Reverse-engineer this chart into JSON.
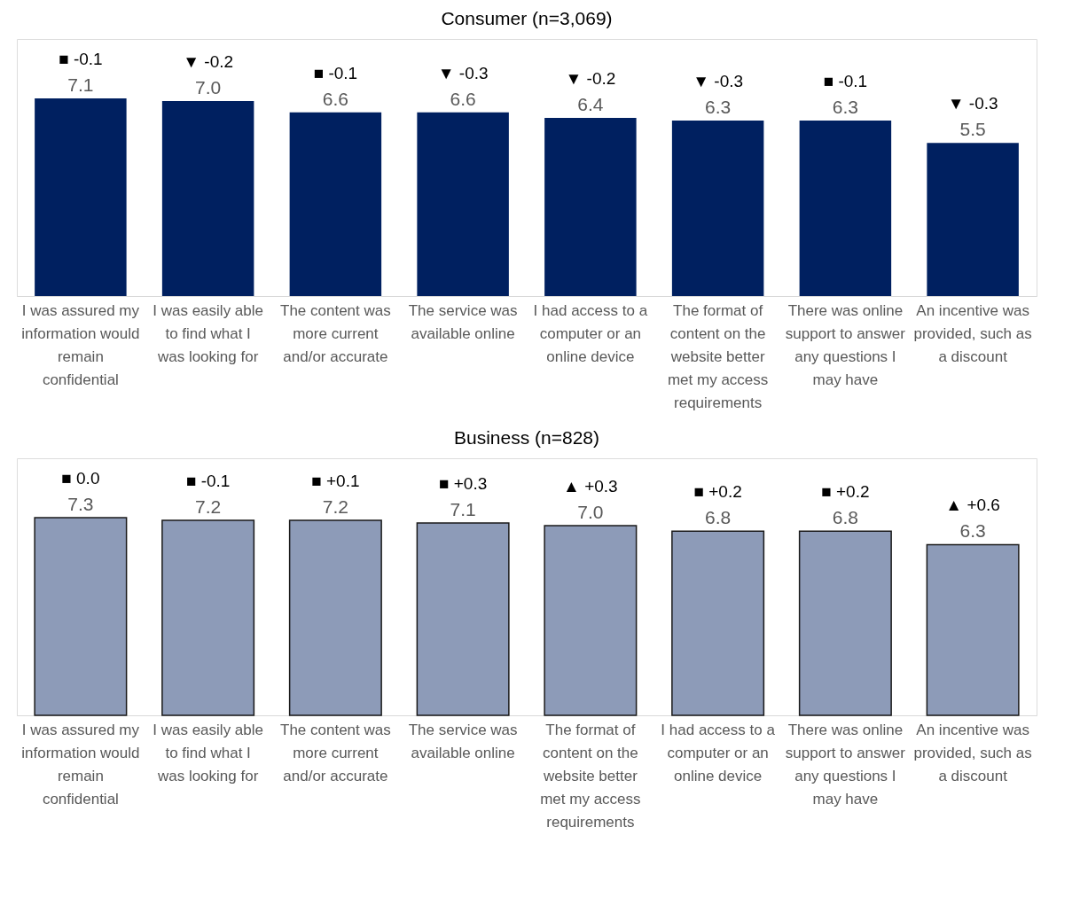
{
  "chart_data": [
    {
      "type": "bar",
      "title": "Consumer (n=3,069)",
      "categories": [
        "I was assured my information would remain confidential",
        "I was easily able to find what I was looking for",
        "The content was more current and/or accurate",
        "The service was available online",
        "I had access to a computer or an online device",
        "The format of content on the website better met my access requirements",
        "There was online support to answer any questions I may have",
        "An incentive was provided, such as a discount"
      ],
      "series": [
        {
          "color": "#002060",
          "values": [
            7.1,
            7.0,
            6.6,
            6.6,
            6.4,
            6.3,
            6.3,
            5.5
          ],
          "value_labels": [
            "7.1",
            "7.0",
            "6.6",
            "6.6",
            "6.4",
            "6.3",
            "6.3",
            "5.5"
          ]
        }
      ],
      "annotations": [
        {
          "text": "■ -0.1",
          "x": "I was assured my information would remain confidential",
          "y": 7.1
        },
        {
          "text": "▼ -0.2",
          "x": "I was easily able to find what I was looking for",
          "y": 7.0
        },
        {
          "text": "■ -0.1",
          "x": "The content was more current and/or accurate",
          "y": 6.6
        },
        {
          "text": "▼ -0.3",
          "x": "The service was available online",
          "y": 6.6
        },
        {
          "text": "▼ -0.2",
          "x": "I had access to a computer or an online device",
          "y": 6.4
        },
        {
          "text": "▼ -0.3",
          "x": "The format of content on the website better met my access requirements",
          "y": 6.3
        },
        {
          "text": "■ -0.1",
          "x": "There was online support to answer any questions I may have",
          "y": 6.3
        },
        {
          "text": "▼ -0.3",
          "x": "An incentive was provided, such as a discount",
          "y": 5.5
        }
      ]
    },
    {
      "type": "bar",
      "title": "Business (n=828)",
      "categories": [
        "I was assured my information would remain confidential",
        "I was easily able to find what I was looking for",
        "The content was more current and/or accurate",
        "The service was available online",
        "The format of content on the website better met my access requirements",
        "I had access to a computer or an online device",
        "There was online support to answer any questions I may have",
        "An incentive was provided, such as a discount"
      ],
      "series": [
        {
          "color": "#8d9bb8",
          "values": [
            7.3,
            7.2,
            7.2,
            7.1,
            7.0,
            6.8,
            6.8,
            6.3
          ],
          "value_labels": [
            "7.3",
            "7.2",
            "7.2",
            "7.1",
            "7.0",
            "6.8",
            "6.8",
            "6.3"
          ]
        }
      ],
      "annotations": [
        {
          "text": "■ 0.0",
          "x": "I was assured my information would remain confidential",
          "y": 7.3
        },
        {
          "text": "■ -0.1",
          "x": "I was easily able to find what I was looking for",
          "y": 7.2
        },
        {
          "text": "■ +0.1",
          "x": "The content was more current and/or accurate",
          "y": 7.2
        },
        {
          "text": "■ +0.3",
          "x": "The service was available online",
          "y": 7.1
        },
        {
          "text": "▲ +0.3",
          "x": "The format of content on the website better met my access requirements",
          "y": 7.0
        },
        {
          "text": "■ +0.2",
          "x": "I had access to a computer or an online device",
          "y": 6.8
        },
        {
          "text": "■ +0.2",
          "x": "There was online support to answer any questions I may have",
          "y": 6.8
        },
        {
          "text": "▲ +0.6",
          "x": "An incentive was provided, such as a discount",
          "y": 6.3
        }
      ]
    }
  ]
}
